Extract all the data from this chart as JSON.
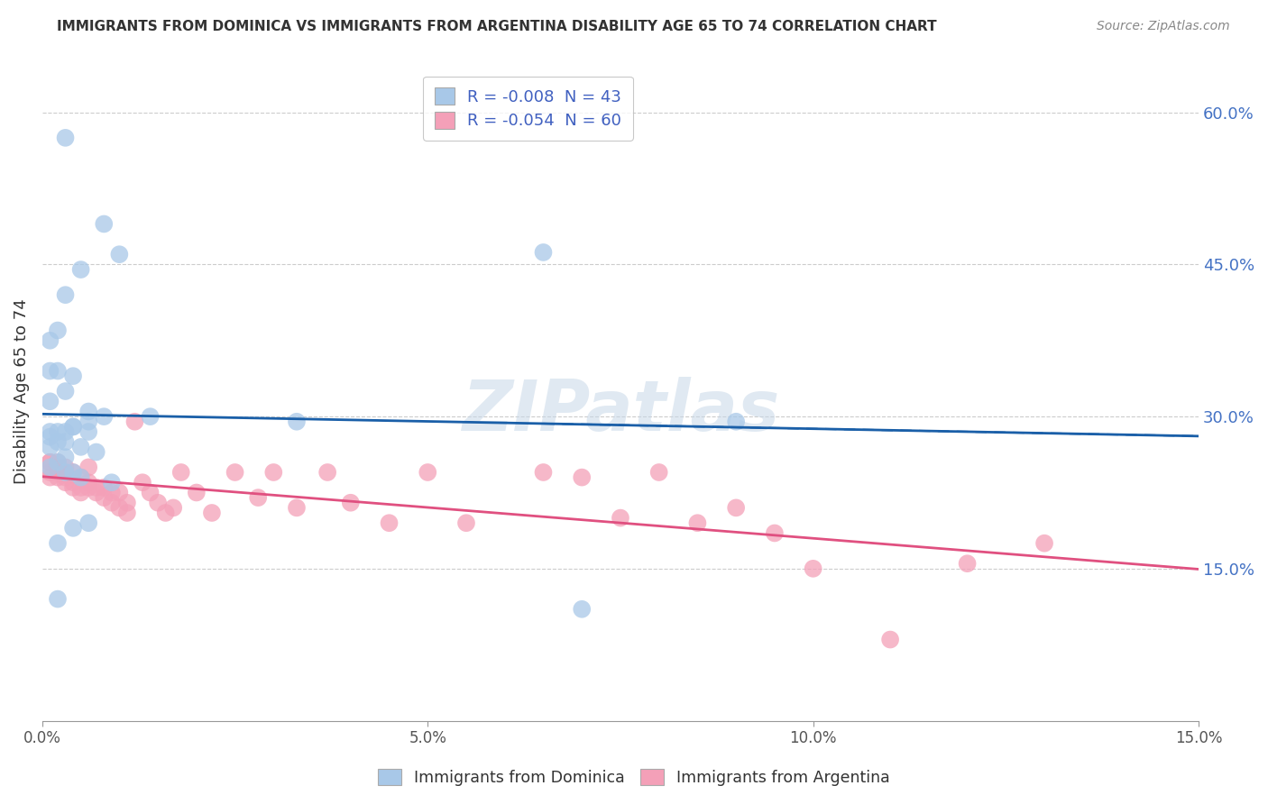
{
  "title": "IMMIGRANTS FROM DOMINICA VS IMMIGRANTS FROM ARGENTINA DISABILITY AGE 65 TO 74 CORRELATION CHART",
  "source": "Source: ZipAtlas.com",
  "ylabel": "Disability Age 65 to 74",
  "xlim": [
    0.0,
    0.15
  ],
  "ylim": [
    0.0,
    0.65
  ],
  "x_ticks": [
    0.0,
    0.05,
    0.1,
    0.15
  ],
  "x_tick_labels": [
    "0.0%",
    "5.0%",
    "10.0%",
    "15.0%"
  ],
  "y_ticks": [
    0.15,
    0.3,
    0.45,
    0.6
  ],
  "y_tick_labels": [
    "15.0%",
    "30.0%",
    "45.0%",
    "60.0%"
  ],
  "dominica_R": -0.008,
  "dominica_N": 43,
  "argentina_R": -0.054,
  "argentina_N": 60,
  "dominica_color": "#a8c8e8",
  "argentina_color": "#f4a0b8",
  "dominica_line_color": "#1a5fa8",
  "argentina_line_color": "#e05080",
  "watermark": "ZIPatlas",
  "dom_x": [
    0.003,
    0.008,
    0.005,
    0.01,
    0.003,
    0.002,
    0.001,
    0.001,
    0.004,
    0.002,
    0.003,
    0.001,
    0.006,
    0.008,
    0.006,
    0.004,
    0.003,
    0.002,
    0.001,
    0.004,
    0.006,
    0.003,
    0.001,
    0.001,
    0.002,
    0.005,
    0.007,
    0.003,
    0.002,
    0.001,
    0.003,
    0.004,
    0.005,
    0.009,
    0.006,
    0.004,
    0.002,
    0.002,
    0.014,
    0.033,
    0.065,
    0.09,
    0.07
  ],
  "dom_y": [
    0.575,
    0.49,
    0.445,
    0.46,
    0.42,
    0.385,
    0.375,
    0.345,
    0.34,
    0.345,
    0.325,
    0.315,
    0.305,
    0.3,
    0.295,
    0.29,
    0.285,
    0.285,
    0.285,
    0.29,
    0.285,
    0.275,
    0.27,
    0.28,
    0.275,
    0.27,
    0.265,
    0.26,
    0.255,
    0.25,
    0.245,
    0.245,
    0.24,
    0.235,
    0.195,
    0.19,
    0.175,
    0.12,
    0.3,
    0.295,
    0.462,
    0.295,
    0.11
  ],
  "arg_x": [
    0.001,
    0.001,
    0.001,
    0.001,
    0.002,
    0.002,
    0.002,
    0.002,
    0.003,
    0.003,
    0.003,
    0.003,
    0.004,
    0.004,
    0.004,
    0.005,
    0.005,
    0.005,
    0.006,
    0.006,
    0.006,
    0.007,
    0.007,
    0.008,
    0.008,
    0.009,
    0.009,
    0.01,
    0.01,
    0.011,
    0.011,
    0.012,
    0.013,
    0.014,
    0.015,
    0.016,
    0.017,
    0.018,
    0.02,
    0.022,
    0.025,
    0.028,
    0.03,
    0.033,
    0.037,
    0.04,
    0.045,
    0.05,
    0.055,
    0.065,
    0.07,
    0.075,
    0.08,
    0.085,
    0.09,
    0.095,
    0.1,
    0.11,
    0.12,
    0.13
  ],
  "arg_y": [
    0.255,
    0.245,
    0.24,
    0.255,
    0.24,
    0.245,
    0.25,
    0.255,
    0.235,
    0.24,
    0.245,
    0.25,
    0.23,
    0.235,
    0.245,
    0.225,
    0.23,
    0.24,
    0.23,
    0.235,
    0.25,
    0.225,
    0.23,
    0.22,
    0.23,
    0.215,
    0.225,
    0.21,
    0.225,
    0.205,
    0.215,
    0.295,
    0.235,
    0.225,
    0.215,
    0.205,
    0.21,
    0.245,
    0.225,
    0.205,
    0.245,
    0.22,
    0.245,
    0.21,
    0.245,
    0.215,
    0.195,
    0.245,
    0.195,
    0.245,
    0.24,
    0.2,
    0.245,
    0.195,
    0.21,
    0.185,
    0.15,
    0.08,
    0.155,
    0.175
  ]
}
